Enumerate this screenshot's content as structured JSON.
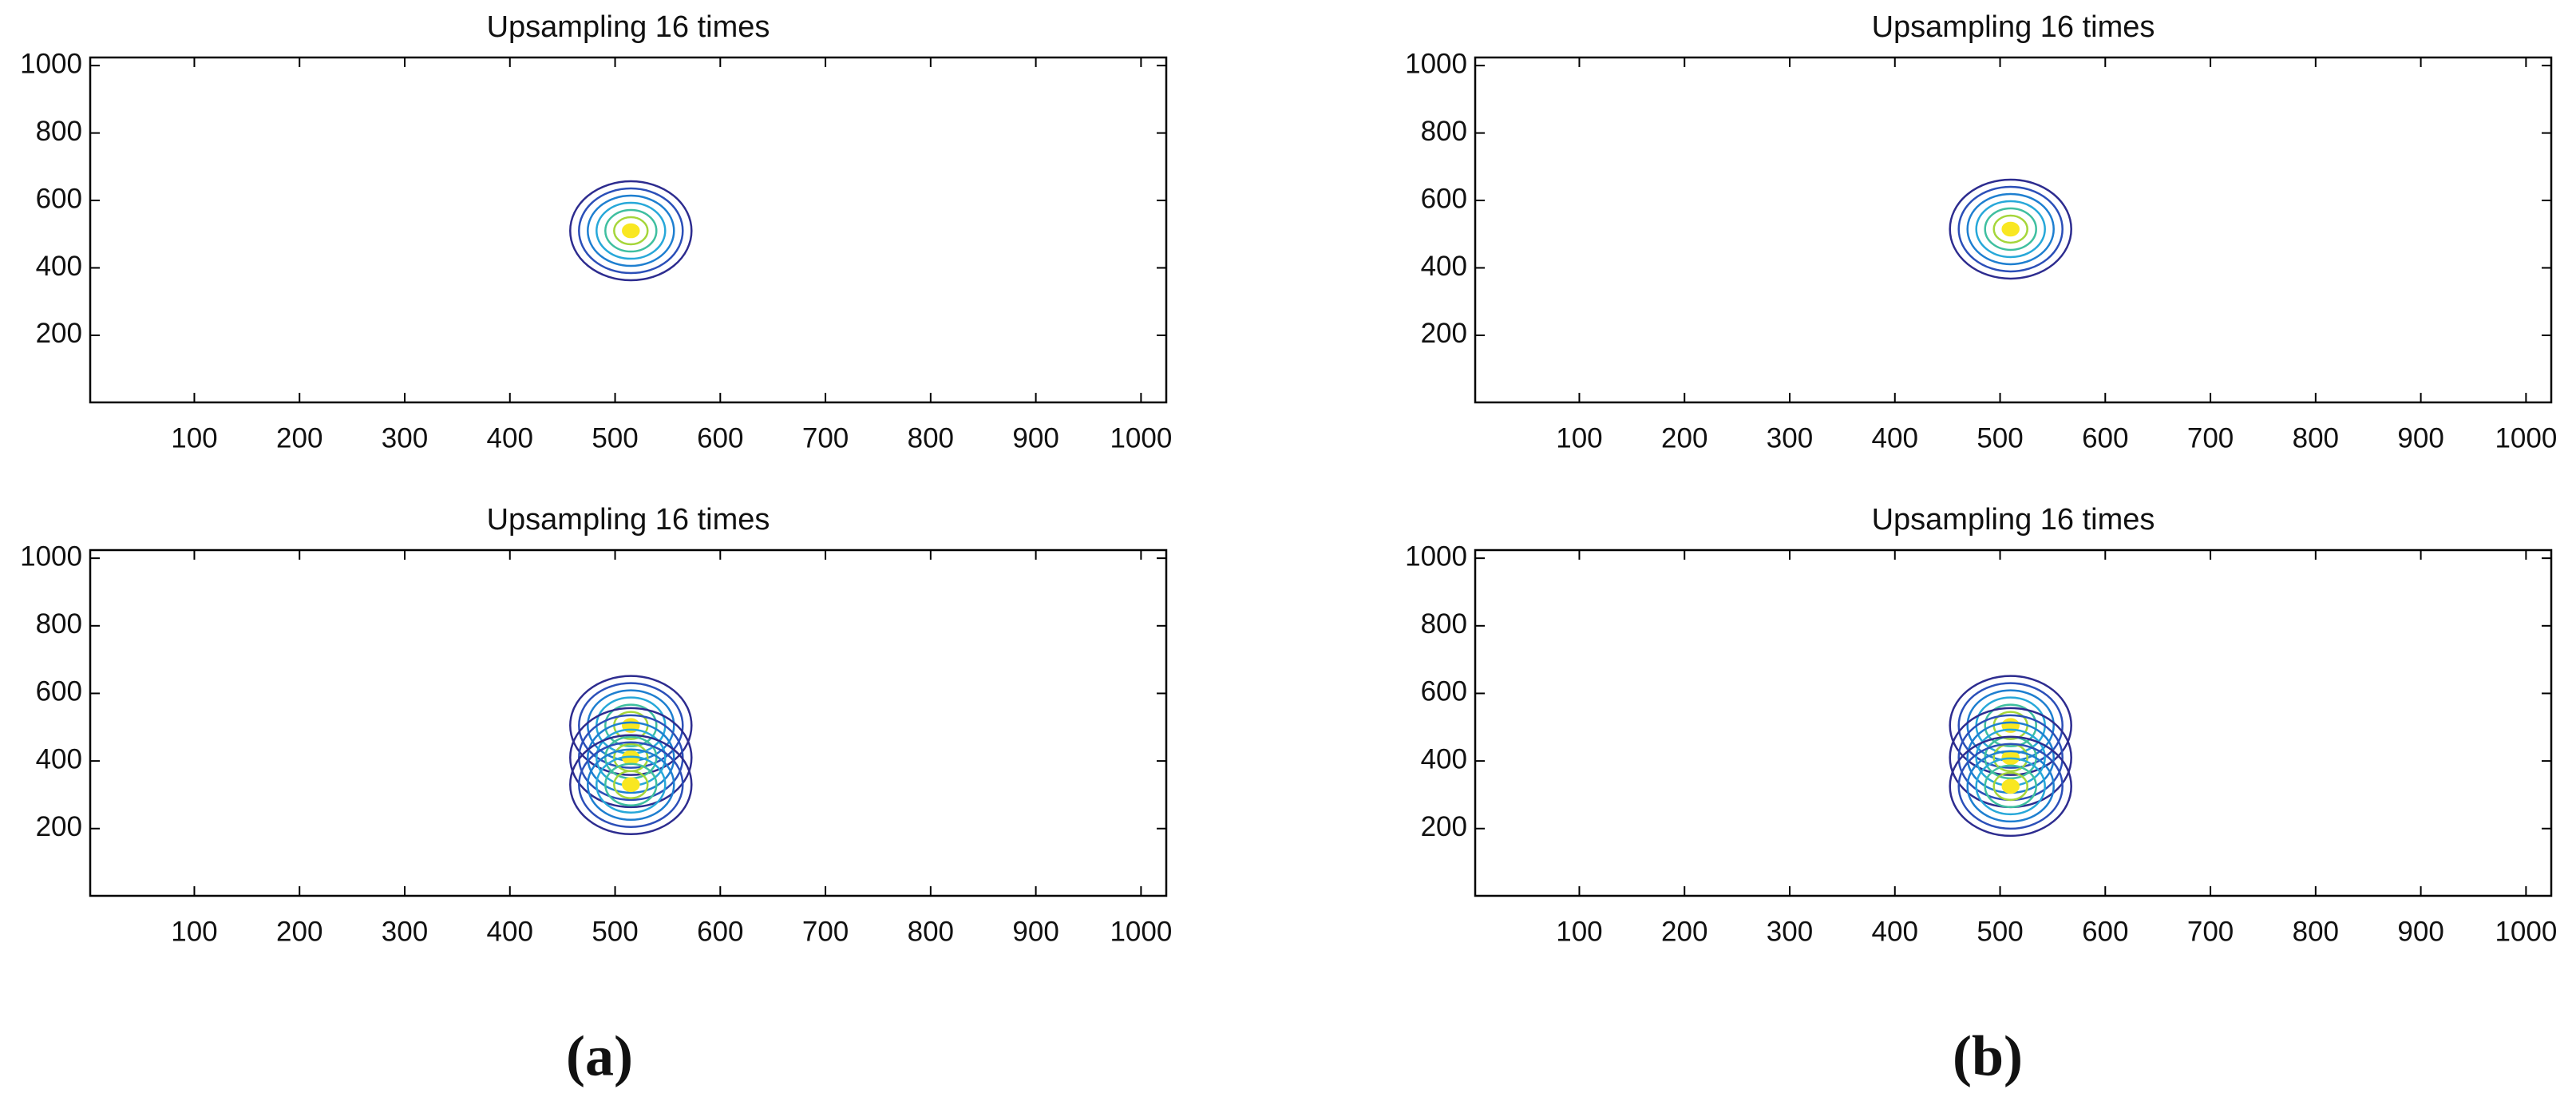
{
  "chart_data": [
    {
      "type": "contour",
      "title": "Upsampling 16 times",
      "xlim": [
        1,
        1024
      ],
      "ylim": [
        1,
        1024
      ],
      "xticks": [
        100,
        200,
        300,
        400,
        500,
        600,
        700,
        800,
        900,
        1000
      ],
      "yticks": [
        200,
        400,
        600,
        800,
        1000
      ],
      "peaks": [
        {
          "x": 515,
          "y": 510
        }
      ],
      "colors": [
        "#f9e721",
        "#a5d63a",
        "#3fbfa0",
        "#27a8d9",
        "#1e7fd0",
        "#2b4fb8",
        "#2d2c8f"
      ]
    },
    {
      "type": "contour",
      "title": "Upsampling 16 times",
      "xlim": [
        1,
        1024
      ],
      "ylim": [
        1,
        1024
      ],
      "xticks": [
        100,
        200,
        300,
        400,
        500,
        600,
        700,
        800,
        900,
        1000
      ],
      "yticks": [
        200,
        400,
        600,
        800,
        1000
      ],
      "peaks": [
        {
          "x": 510,
          "y": 515
        }
      ],
      "colors": [
        "#f9e721",
        "#a5d63a",
        "#3fbfa0",
        "#27a8d9",
        "#1e7fd0",
        "#2b4fb8",
        "#2d2c8f"
      ]
    },
    {
      "type": "contour",
      "title": "Upsampling 16 times",
      "xlim": [
        1,
        1024
      ],
      "ylim": [
        1,
        1024
      ],
      "xticks": [
        100,
        200,
        300,
        400,
        500,
        600,
        700,
        800,
        900,
        1000
      ],
      "yticks": [
        200,
        400,
        600,
        800,
        1000
      ],
      "peaks": [
        {
          "x": 515,
          "y": 505
        },
        {
          "x": 515,
          "y": 410
        },
        {
          "x": 515,
          "y": 330
        }
      ],
      "colors": [
        "#f9e721",
        "#a5d63a",
        "#3fbfa0",
        "#27a8d9",
        "#1e7fd0",
        "#2b4fb8",
        "#2d2c8f"
      ]
    },
    {
      "type": "contour",
      "title": "Upsampling 16 times",
      "xlim": [
        1,
        1024
      ],
      "ylim": [
        1,
        1024
      ],
      "xticks": [
        100,
        200,
        300,
        400,
        500,
        600,
        700,
        800,
        900,
        1000
      ],
      "yticks": [
        200,
        400,
        600,
        800,
        1000
      ],
      "peaks": [
        {
          "x": 510,
          "y": 505
        },
        {
          "x": 510,
          "y": 410
        },
        {
          "x": 510,
          "y": 325
        }
      ],
      "colors": [
        "#f9e721",
        "#a5d63a",
        "#3fbfa0",
        "#27a8d9",
        "#1e7fd0",
        "#2b4fb8",
        "#2d2c8f"
      ]
    }
  ],
  "captions": [
    "(a)",
    "(b)"
  ]
}
